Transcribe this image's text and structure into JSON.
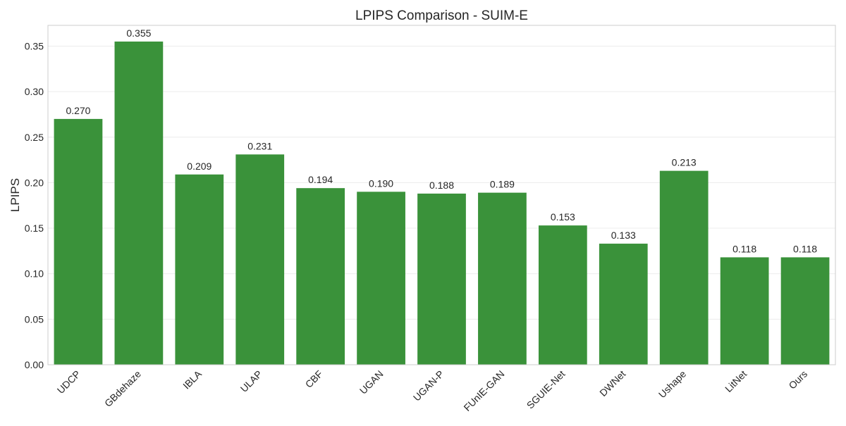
{
  "chart_data": {
    "type": "bar",
    "title": "LPIPS Comparison - SUIM-E",
    "xlabel": "",
    "ylabel": "LPIPS",
    "categories": [
      "UDCP",
      "GBdehaze",
      "IBLA",
      "ULAP",
      "CBF",
      "UGAN",
      "UGAN-P",
      "FUnIE-GAN",
      "SGUIE-Net",
      "DWNet",
      "Ushape",
      "LitNet",
      "Ours"
    ],
    "values": [
      0.27,
      0.355,
      0.209,
      0.231,
      0.194,
      0.19,
      0.188,
      0.189,
      0.153,
      0.133,
      0.213,
      0.118,
      0.118
    ],
    "value_labels": [
      "0.270",
      "0.355",
      "0.209",
      "0.231",
      "0.194",
      "0.190",
      "0.188",
      "0.189",
      "0.153",
      "0.133",
      "0.213",
      "0.118",
      "0.118"
    ],
    "yticks": [
      0.0,
      0.05,
      0.1,
      0.15,
      0.2,
      0.25,
      0.3,
      0.35
    ],
    "ytick_labels": [
      "0.00",
      "0.05",
      "0.10",
      "0.15",
      "0.20",
      "0.25",
      "0.30",
      "0.35"
    ],
    "ylim": [
      0,
      0.3728
    ],
    "grid": true,
    "bar_color": "#3a923a"
  }
}
